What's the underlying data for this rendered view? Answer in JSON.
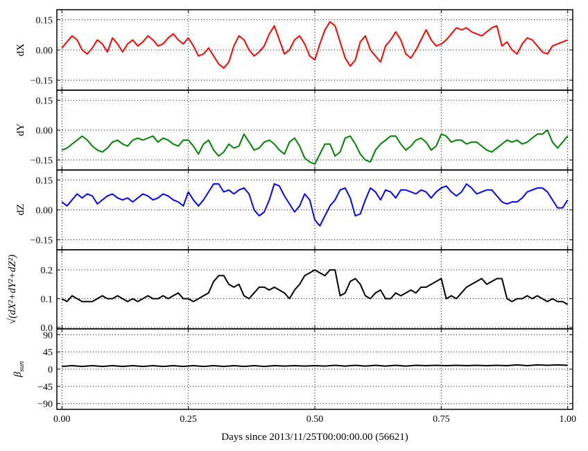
{
  "chart_data": [
    {
      "type": "line",
      "ylabel": "dX",
      "color": "#ff0000",
      "ylim": [
        -0.2,
        0.2
      ],
      "yticks": [
        -0.15,
        0.0,
        0.15
      ],
      "ytick_labels": [
        "−0.15",
        "0.00",
        "0.15"
      ],
      "xlim": [
        -0.01,
        1.01
      ],
      "grid": true,
      "series": [
        {
          "x": [
            0.0,
            0.01,
            0.02,
            0.03,
            0.04,
            0.05,
            0.06,
            0.07,
            0.08,
            0.09,
            0.1,
            0.11,
            0.12,
            0.13,
            0.14,
            0.15,
            0.16,
            0.17,
            0.18,
            0.19,
            0.2,
            0.21,
            0.22,
            0.23,
            0.24,
            0.25,
            0.26,
            0.27,
            0.28,
            0.29,
            0.3,
            0.31,
            0.32,
            0.33,
            0.34,
            0.35,
            0.36,
            0.37,
            0.38,
            0.39,
            0.4,
            0.41,
            0.42,
            0.43,
            0.44,
            0.45,
            0.46,
            0.47,
            0.48,
            0.49,
            0.5,
            0.51,
            0.52,
            0.53,
            0.54,
            0.55,
            0.56,
            0.57,
            0.58,
            0.59,
            0.6,
            0.61,
            0.62,
            0.63,
            0.64,
            0.65,
            0.66,
            0.67,
            0.68,
            0.69,
            0.7,
            0.71,
            0.72,
            0.73,
            0.74,
            0.75,
            0.76,
            0.77,
            0.78,
            0.79,
            0.8,
            0.81,
            0.82,
            0.83,
            0.84,
            0.85,
            0.86,
            0.87,
            0.88,
            0.89,
            0.9,
            0.91,
            0.92,
            0.93,
            0.94,
            0.95,
            0.96,
            0.97,
            0.98,
            0.99,
            1.0
          ],
          "y": [
            0.01,
            0.04,
            0.07,
            0.05,
            0.0,
            -0.02,
            0.01,
            0.05,
            0.03,
            -0.01,
            0.06,
            0.03,
            -0.01,
            0.03,
            0.05,
            0.02,
            0.04,
            0.07,
            0.05,
            0.02,
            0.03,
            0.06,
            0.08,
            0.05,
            0.03,
            0.06,
            0.02,
            -0.03,
            -0.02,
            0.01,
            -0.03,
            -0.07,
            -0.09,
            -0.06,
            0.02,
            0.07,
            0.05,
            0.0,
            -0.03,
            -0.01,
            0.02,
            0.08,
            0.12,
            0.05,
            -0.02,
            0.0,
            0.05,
            0.07,
            0.03,
            -0.03,
            -0.05,
            0.03,
            0.1,
            0.14,
            0.12,
            0.04,
            -0.04,
            -0.08,
            -0.05,
            0.04,
            0.07,
            0.0,
            -0.03,
            -0.06,
            0.02,
            0.05,
            0.09,
            0.05,
            -0.02,
            -0.04,
            0.0,
            0.05,
            0.1,
            0.05,
            0.02,
            0.03,
            0.05,
            0.08,
            0.11,
            0.1,
            0.11,
            0.09,
            0.08,
            0.07,
            0.09,
            0.11,
            0.12,
            0.02,
            0.04,
            0.0,
            -0.02,
            0.03,
            0.06,
            0.05,
            0.02,
            -0.01,
            -0.02,
            0.02,
            0.03,
            0.04,
            0.05
          ]
        }
      ]
    },
    {
      "type": "line",
      "ylabel": "dY",
      "color": "#008000",
      "ylim": [
        -0.2,
        0.2
      ],
      "yticks": [
        -0.15,
        0.0,
        0.15
      ],
      "ytick_labels": [
        "−0.15",
        "0.00",
        "0.15"
      ],
      "xlim": [
        -0.01,
        1.01
      ],
      "grid": true,
      "series": [
        {
          "x": [
            0.0,
            0.01,
            0.02,
            0.03,
            0.04,
            0.05,
            0.06,
            0.07,
            0.08,
            0.09,
            0.1,
            0.11,
            0.12,
            0.13,
            0.14,
            0.15,
            0.16,
            0.17,
            0.18,
            0.19,
            0.2,
            0.21,
            0.22,
            0.23,
            0.24,
            0.25,
            0.26,
            0.27,
            0.28,
            0.29,
            0.3,
            0.31,
            0.32,
            0.33,
            0.34,
            0.35,
            0.36,
            0.37,
            0.38,
            0.39,
            0.4,
            0.41,
            0.42,
            0.43,
            0.44,
            0.45,
            0.46,
            0.47,
            0.48,
            0.49,
            0.5,
            0.51,
            0.52,
            0.53,
            0.54,
            0.55,
            0.56,
            0.57,
            0.58,
            0.59,
            0.6,
            0.61,
            0.62,
            0.63,
            0.64,
            0.65,
            0.66,
            0.67,
            0.68,
            0.69,
            0.7,
            0.71,
            0.72,
            0.73,
            0.74,
            0.75,
            0.76,
            0.77,
            0.78,
            0.79,
            0.8,
            0.81,
            0.82,
            0.83,
            0.84,
            0.85,
            0.86,
            0.87,
            0.88,
            0.89,
            0.9,
            0.91,
            0.92,
            0.93,
            0.94,
            0.95,
            0.96,
            0.97,
            0.98,
            0.99,
            1.0
          ],
          "y": [
            -0.1,
            -0.09,
            -0.07,
            -0.05,
            -0.03,
            -0.05,
            -0.08,
            -0.1,
            -0.11,
            -0.09,
            -0.06,
            -0.05,
            -0.07,
            -0.08,
            -0.05,
            -0.04,
            -0.05,
            -0.04,
            -0.03,
            -0.06,
            -0.04,
            -0.05,
            -0.07,
            -0.08,
            -0.05,
            -0.05,
            -0.08,
            -0.12,
            -0.07,
            -0.05,
            -0.1,
            -0.13,
            -0.11,
            -0.07,
            -0.09,
            -0.08,
            -0.02,
            -0.06,
            -0.1,
            -0.09,
            -0.06,
            -0.05,
            -0.07,
            -0.1,
            -0.12,
            -0.06,
            -0.04,
            -0.08,
            -0.14,
            -0.16,
            -0.17,
            -0.12,
            -0.07,
            -0.07,
            -0.13,
            -0.11,
            -0.04,
            -0.03,
            -0.07,
            -0.12,
            -0.15,
            -0.16,
            -0.1,
            -0.07,
            -0.05,
            -0.03,
            -0.03,
            -0.07,
            -0.1,
            -0.08,
            -0.05,
            -0.04,
            -0.06,
            -0.1,
            -0.08,
            -0.02,
            -0.03,
            -0.06,
            -0.05,
            -0.05,
            -0.07,
            -0.06,
            -0.06,
            -0.08,
            -0.1,
            -0.11,
            -0.09,
            -0.07,
            -0.05,
            -0.06,
            -0.05,
            -0.07,
            -0.06,
            -0.04,
            -0.02,
            -0.02,
            0.0,
            -0.06,
            -0.09,
            -0.06,
            -0.03
          ]
        }
      ]
    },
    {
      "type": "line",
      "ylabel": "dZ",
      "color": "#0000ff",
      "ylim": [
        -0.2,
        0.2
      ],
      "yticks": [
        -0.15,
        0.0,
        0.15
      ],
      "ytick_labels": [
        "−0.15",
        "0.00",
        "0.15"
      ],
      "xlim": [
        -0.01,
        1.01
      ],
      "grid": true,
      "series": [
        {
          "x": [
            0.0,
            0.01,
            0.02,
            0.03,
            0.04,
            0.05,
            0.06,
            0.07,
            0.08,
            0.09,
            0.1,
            0.11,
            0.12,
            0.13,
            0.14,
            0.15,
            0.16,
            0.17,
            0.18,
            0.19,
            0.2,
            0.21,
            0.22,
            0.23,
            0.24,
            0.25,
            0.26,
            0.27,
            0.28,
            0.29,
            0.3,
            0.31,
            0.32,
            0.33,
            0.34,
            0.35,
            0.36,
            0.37,
            0.38,
            0.39,
            0.4,
            0.41,
            0.42,
            0.43,
            0.44,
            0.45,
            0.46,
            0.47,
            0.48,
            0.49,
            0.5,
            0.51,
            0.52,
            0.53,
            0.54,
            0.55,
            0.56,
            0.57,
            0.58,
            0.59,
            0.6,
            0.61,
            0.62,
            0.63,
            0.64,
            0.65,
            0.66,
            0.67,
            0.68,
            0.69,
            0.7,
            0.71,
            0.72,
            0.73,
            0.74,
            0.75,
            0.76,
            0.77,
            0.78,
            0.79,
            0.8,
            0.81,
            0.82,
            0.83,
            0.84,
            0.85,
            0.86,
            0.87,
            0.88,
            0.89,
            0.9,
            0.91,
            0.92,
            0.93,
            0.94,
            0.95,
            0.96,
            0.97,
            0.98,
            0.99,
            1.0
          ],
          "y": [
            0.04,
            0.02,
            0.05,
            0.08,
            0.06,
            0.08,
            0.07,
            0.03,
            0.05,
            0.07,
            0.08,
            0.06,
            0.05,
            0.06,
            0.04,
            0.06,
            0.08,
            0.07,
            0.05,
            0.06,
            0.08,
            0.07,
            0.05,
            0.04,
            0.02,
            0.09,
            0.05,
            0.02,
            0.05,
            0.09,
            0.13,
            0.13,
            0.09,
            0.1,
            0.08,
            0.1,
            0.11,
            0.08,
            0.0,
            -0.03,
            -0.01,
            0.05,
            0.13,
            0.12,
            0.07,
            0.03,
            -0.01,
            0.02,
            0.08,
            0.05,
            -0.05,
            -0.08,
            -0.03,
            0.02,
            0.05,
            0.1,
            0.11,
            0.06,
            -0.03,
            -0.02,
            0.05,
            0.11,
            0.09,
            0.05,
            0.1,
            0.09,
            0.06,
            0.1,
            0.1,
            0.09,
            0.08,
            0.1,
            0.09,
            0.06,
            0.09,
            0.11,
            0.12,
            0.09,
            0.07,
            0.09,
            0.13,
            0.11,
            0.08,
            0.09,
            0.1,
            0.1,
            0.07,
            0.04,
            0.03,
            0.04,
            0.04,
            0.06,
            0.09,
            0.1,
            0.11,
            0.11,
            0.09,
            0.05,
            0.01,
            0.01,
            0.05
          ]
        }
      ]
    },
    {
      "type": "line",
      "ylabel": "√(dX²+dY²+dZ²)",
      "color": "#000000",
      "ylim": [
        -0.005,
        0.27
      ],
      "yticks": [
        0.0,
        0.1,
        0.2
      ],
      "ytick_labels": [
        "0.0",
        "0.1",
        "0.2"
      ],
      "xlim": [
        -0.01,
        1.01
      ],
      "grid": true,
      "series": [
        {
          "x": [
            0.0,
            0.01,
            0.02,
            0.03,
            0.04,
            0.05,
            0.06,
            0.07,
            0.08,
            0.09,
            0.1,
            0.11,
            0.12,
            0.13,
            0.14,
            0.15,
            0.16,
            0.17,
            0.18,
            0.19,
            0.2,
            0.21,
            0.22,
            0.23,
            0.24,
            0.25,
            0.26,
            0.27,
            0.28,
            0.29,
            0.3,
            0.31,
            0.32,
            0.33,
            0.34,
            0.35,
            0.36,
            0.37,
            0.38,
            0.39,
            0.4,
            0.41,
            0.42,
            0.43,
            0.44,
            0.45,
            0.46,
            0.47,
            0.48,
            0.49,
            0.5,
            0.51,
            0.52,
            0.53,
            0.54,
            0.55,
            0.56,
            0.57,
            0.58,
            0.59,
            0.6,
            0.61,
            0.62,
            0.63,
            0.64,
            0.65,
            0.66,
            0.67,
            0.68,
            0.69,
            0.7,
            0.71,
            0.72,
            0.73,
            0.74,
            0.75,
            0.76,
            0.77,
            0.78,
            0.79,
            0.8,
            0.81,
            0.82,
            0.83,
            0.84,
            0.85,
            0.86,
            0.87,
            0.88,
            0.89,
            0.9,
            0.91,
            0.92,
            0.93,
            0.94,
            0.95,
            0.96,
            0.97,
            0.98,
            0.99,
            1.0
          ],
          "y": [
            0.1,
            0.09,
            0.11,
            0.1,
            0.09,
            0.09,
            0.09,
            0.1,
            0.11,
            0.1,
            0.1,
            0.11,
            0.1,
            0.09,
            0.1,
            0.09,
            0.1,
            0.11,
            0.1,
            0.1,
            0.11,
            0.1,
            0.11,
            0.12,
            0.1,
            0.1,
            0.09,
            0.1,
            0.11,
            0.12,
            0.16,
            0.18,
            0.18,
            0.15,
            0.14,
            0.15,
            0.11,
            0.1,
            0.12,
            0.14,
            0.14,
            0.13,
            0.14,
            0.13,
            0.12,
            0.1,
            0.13,
            0.15,
            0.18,
            0.19,
            0.2,
            0.19,
            0.18,
            0.2,
            0.2,
            0.11,
            0.12,
            0.16,
            0.17,
            0.15,
            0.11,
            0.1,
            0.12,
            0.13,
            0.1,
            0.1,
            0.12,
            0.11,
            0.12,
            0.13,
            0.12,
            0.14,
            0.14,
            0.15,
            0.16,
            0.17,
            0.1,
            0.11,
            0.1,
            0.12,
            0.14,
            0.15,
            0.16,
            0.17,
            0.15,
            0.16,
            0.17,
            0.17,
            0.1,
            0.09,
            0.1,
            0.1,
            0.11,
            0.1,
            0.11,
            0.1,
            0.09,
            0.1,
            0.09,
            0.09,
            0.08
          ]
        }
      ]
    },
    {
      "type": "line",
      "ylabel": "β_sun",
      "color": "#000000",
      "ylim": [
        -105,
        105
      ],
      "yticks": [
        -90,
        -45,
        0,
        45,
        90
      ],
      "ytick_labels": [
        "−90",
        "−45",
        "0",
        "45",
        "90"
      ],
      "xlim": [
        -0.01,
        1.01
      ],
      "grid": true,
      "series": [
        {
          "x": [
            0.0,
            0.02,
            0.04,
            0.06,
            0.08,
            0.1,
            0.12,
            0.14,
            0.16,
            0.18,
            0.2,
            0.22,
            0.24,
            0.26,
            0.28,
            0.3,
            0.32,
            0.34,
            0.36,
            0.38,
            0.4,
            0.42,
            0.44,
            0.46,
            0.48,
            0.5,
            0.52,
            0.54,
            0.56,
            0.58,
            0.6,
            0.62,
            0.64,
            0.66,
            0.68,
            0.7,
            0.72,
            0.74,
            0.76,
            0.78,
            0.8,
            0.82,
            0.84,
            0.86,
            0.88,
            0.9,
            0.92,
            0.94,
            0.96,
            0.98,
            1.0
          ],
          "y": [
            7,
            9,
            7,
            9,
            7,
            9,
            7,
            9,
            7,
            9,
            7,
            9,
            7,
            9,
            7,
            9,
            7,
            9,
            7,
            9,
            7,
            9,
            8,
            9,
            8,
            9,
            8,
            10,
            8,
            10,
            8,
            10,
            8,
            10,
            8,
            10,
            9,
            10,
            9,
            10,
            9,
            10,
            9,
            10,
            9,
            11,
            9,
            11,
            10,
            11,
            10
          ]
        }
      ]
    }
  ],
  "shared_x": {
    "xlabel": "Days since 2013/11/25T00:00:00.00 (56621)",
    "xticks": [
      0.0,
      0.25,
      0.5,
      0.75,
      1.0
    ],
    "xtick_labels": [
      "0.00",
      "0.25",
      "0.50",
      "0.75",
      "1.00"
    ]
  }
}
